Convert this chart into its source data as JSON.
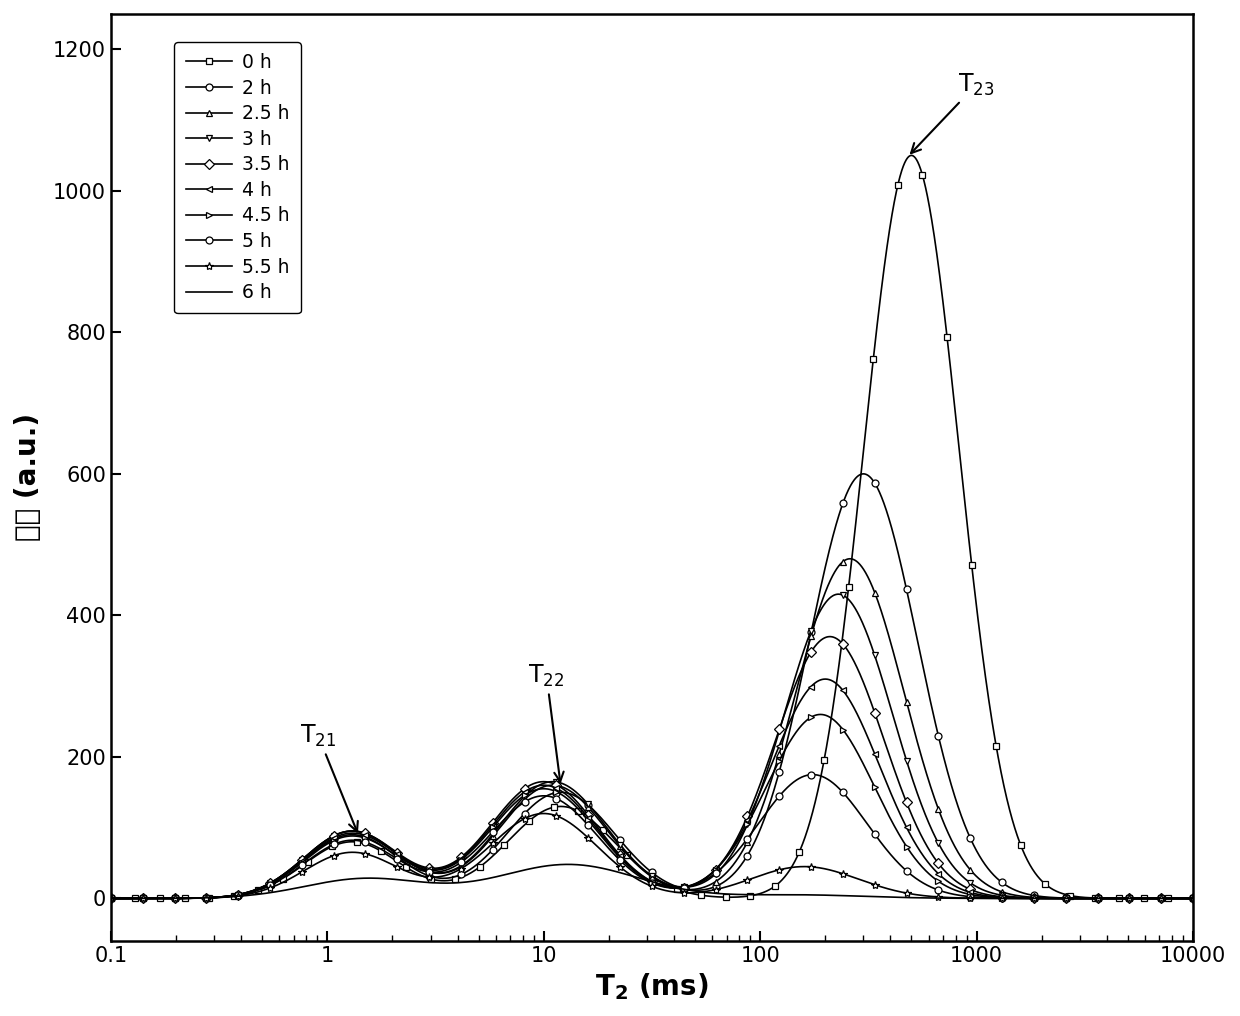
{
  "title": "",
  "xlabel_part1": "T",
  "xlabel_sub": "2",
  "xlabel_part2": " (ms)",
  "ylabel": "幅度 (a.u.)",
  "xlim": [
    0.1,
    10000
  ],
  "ylim": [
    -60,
    1250
  ],
  "yticks": [
    0,
    200,
    400,
    600,
    800,
    1000,
    1200
  ],
  "legend_labels": [
    "0 h",
    "2 h",
    "2.5 h",
    "3 h",
    "3.5 h",
    "4 h",
    "4.5 h",
    "5 h",
    "5.5 h",
    "6 h"
  ],
  "markers": [
    "s",
    "o",
    "^",
    "v",
    "D",
    "<",
    ">",
    "o",
    "*",
    "none"
  ],
  "marker_sizes": [
    5,
    5,
    5,
    5,
    5,
    5,
    5,
    5,
    6,
    5
  ],
  "line_color": "black",
  "background_color": "white",
  "curve_params": [
    [
      80,
      1.3,
      0.22,
      130,
      12,
      0.25,
      1050,
      500,
      0.22
    ],
    [
      90,
      1.3,
      0.22,
      150,
      12,
      0.25,
      600,
      300,
      0.25
    ],
    [
      95,
      1.3,
      0.22,
      160,
      11,
      0.25,
      480,
      260,
      0.25
    ],
    [
      95,
      1.3,
      0.22,
      165,
      11,
      0.25,
      430,
      230,
      0.25
    ],
    [
      95,
      1.3,
      0.22,
      165,
      10,
      0.25,
      370,
      210,
      0.25
    ],
    [
      92,
      1.3,
      0.22,
      160,
      10,
      0.25,
      310,
      200,
      0.25
    ],
    [
      88,
      1.3,
      0.22,
      155,
      10,
      0.25,
      260,
      190,
      0.25
    ],
    [
      82,
      1.3,
      0.22,
      145,
      10,
      0.25,
      175,
      175,
      0.25
    ],
    [
      65,
      1.3,
      0.22,
      120,
      10,
      0.25,
      45,
      160,
      0.25
    ],
    [
      28,
      1.5,
      0.28,
      48,
      13,
      0.32,
      5,
      150,
      0.3
    ]
  ]
}
